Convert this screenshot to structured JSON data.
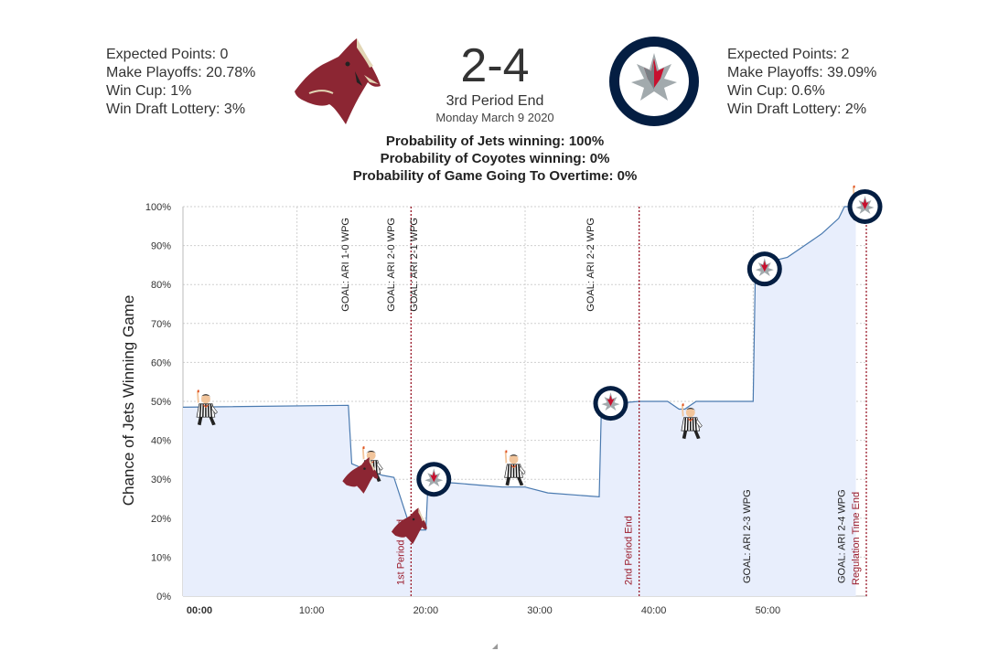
{
  "away_team": {
    "stats": [
      "Expected Points: 0",
      "Make Playoffs: 20.78%",
      "Win Cup: 1%",
      "Win Draft Lottery: 3%"
    ],
    "logo_icon": "coyotes-logo-icon",
    "color": "#8c2633"
  },
  "home_team": {
    "stats": [
      "Expected Points: 2",
      "Make Playoffs: 39.09%",
      "Win Cup: 0.6%",
      "Win Draft Lottery: 2%"
    ],
    "logo_icon": "jets-logo-icon",
    "color": "#041e42"
  },
  "score": "2-4",
  "period": "3rd Period End",
  "date": "Monday March 9 2020",
  "probabilities": {
    "jets": "Probability of Jets winning: 100%",
    "coyotes": "Probability of Coyotes winning: 0%",
    "overtime": "Probability of Game Going To Overtime: 0%"
  },
  "chart_data": {
    "type": "area",
    "ylabel": "Chance of Jets Winning Game",
    "xlabel": "",
    "x_unit": "minutes",
    "xlim": [
      0,
      60
    ],
    "ylim": [
      0,
      100
    ],
    "x_ticks": [
      "00:00",
      "10:00",
      "20:00",
      "30:00",
      "40:00",
      "50:00"
    ],
    "y_ticks": [
      "0%",
      "10%",
      "20%",
      "30%",
      "40%",
      "50%",
      "60%",
      "70%",
      "80%",
      "90%",
      "100%"
    ],
    "grid": true,
    "fill_color": "#e8eefc",
    "line_color": "#4a7ab0",
    "x": [
      0,
      14.5,
      14.8,
      16,
      17.5,
      18.5,
      20,
      20.1,
      21.3,
      21.5,
      24,
      26,
      28,
      29,
      30,
      32,
      36.5,
      36.7,
      38,
      40,
      42.5,
      43.5,
      44,
      45,
      50,
      50.2,
      53,
      54,
      56,
      57.5,
      58,
      59
    ],
    "y": [
      48.5,
      49,
      34,
      32.5,
      31,
      30.5,
      17,
      17,
      17,
      29.5,
      29,
      28.5,
      28,
      28,
      28,
      26.5,
      25.5,
      49.5,
      49.5,
      50,
      50,
      48,
      48,
      50,
      50,
      85,
      87,
      89,
      93,
      97,
      100,
      100
    ],
    "period_lines": [
      {
        "x": 20,
        "label": "1st Period End"
      },
      {
        "x": 40,
        "label": "2nd Period End"
      },
      {
        "x": 60,
        "label": "Regulation Time End"
      }
    ],
    "goals": [
      {
        "x": 15,
        "label": "GOAL: ARI 1-0 WPG",
        "team": "ARI",
        "label_pos": "top"
      },
      {
        "x": 19,
        "label": "GOAL: ARI 2-0 WPG",
        "team": "ARI",
        "label_pos": "top"
      },
      {
        "x": 21,
        "label": "GOAL: ARI 2-1 WPG",
        "team": "WPG",
        "label_pos": "top"
      },
      {
        "x": 36.5,
        "label": "GOAL: ARI 2-2 WPG",
        "team": "WPG",
        "label_pos": "top"
      },
      {
        "x": 50.2,
        "label": "GOAL: ARI 2-3 WPG",
        "team": "WPG",
        "label_pos": "bottom"
      },
      {
        "x": 58.5,
        "label": "GOAL: ARI 2-4 WPG",
        "team": "WPG",
        "label_pos": "bottom"
      }
    ],
    "markers": [
      {
        "x": 2,
        "y": 48.5,
        "icon": "referee-icon"
      },
      {
        "x": 16.5,
        "y": 34,
        "icon": "referee-icon"
      },
      {
        "x": 15.5,
        "y": 31,
        "icon": "coyotes-logo-icon"
      },
      {
        "x": 19.8,
        "y": 18,
        "icon": "coyotes-logo-icon"
      },
      {
        "x": 22,
        "y": 30,
        "icon": "jets-logo-icon"
      },
      {
        "x": 29,
        "y": 33,
        "icon": "referee-icon"
      },
      {
        "x": 37.5,
        "y": 49.5,
        "icon": "jets-logo-icon"
      },
      {
        "x": 44.5,
        "y": 45,
        "icon": "referee-icon"
      },
      {
        "x": 51,
        "y": 84,
        "icon": "jets-logo-icon"
      },
      {
        "x": 59.5,
        "y": 101,
        "icon": "referee-icon"
      },
      {
        "x": 59.8,
        "y": 100,
        "icon": "jets-logo-icon"
      }
    ]
  }
}
